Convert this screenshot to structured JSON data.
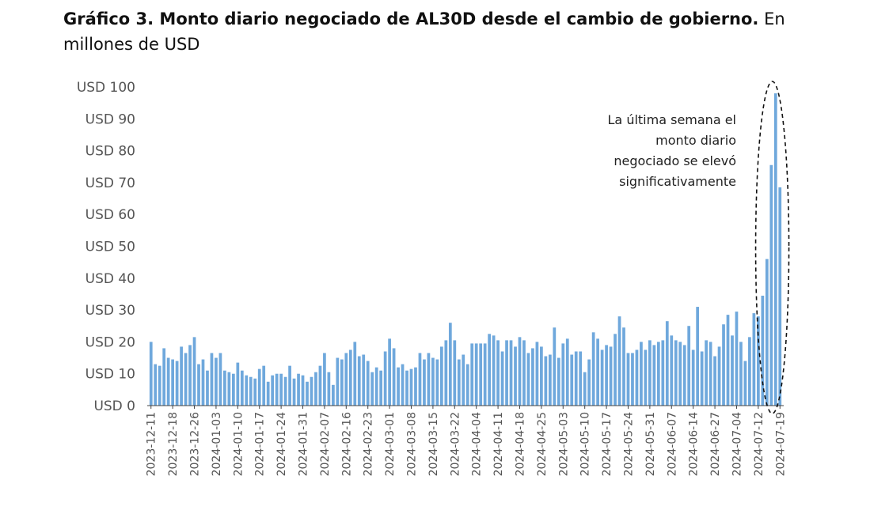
{
  "title": {
    "bold": "Gráfico 3. Monto diario negociado de AL30D desde el cambio de gobierno.",
    "rest": " En millones de USD"
  },
  "annotation": {
    "lines": [
      "La última semana el",
      "monto diario",
      "negociado se elevó",
      "significativamente"
    ]
  },
  "colors": {
    "bar": "#6fa8dc",
    "axis": "#444444"
  },
  "chart_data": {
    "type": "bar",
    "ylim": [
      0,
      100
    ],
    "yticks": [
      {
        "value": 0,
        "label": "USD 0"
      },
      {
        "value": 10,
        "label": "USD 10"
      },
      {
        "value": 20,
        "label": "USD 20"
      },
      {
        "value": 30,
        "label": "USD 30"
      },
      {
        "value": 40,
        "label": "USD 40"
      },
      {
        "value": 50,
        "label": "USD 50"
      },
      {
        "value": 60,
        "label": "USD 60"
      },
      {
        "value": 70,
        "label": "USD 70"
      },
      {
        "value": 80,
        "label": "USD 80"
      },
      {
        "value": 90,
        "label": "USD 90"
      },
      {
        "value": 100,
        "label": "USD 100"
      }
    ],
    "xtick_labels": [
      {
        "index": 0,
        "label": "2023-12-11"
      },
      {
        "index": 5,
        "label": "2023-12-18"
      },
      {
        "index": 10,
        "label": "2023-12-26"
      },
      {
        "index": 15,
        "label": "2024-01-03"
      },
      {
        "index": 20,
        "label": "2024-01-10"
      },
      {
        "index": 25,
        "label": "2024-01-17"
      },
      {
        "index": 30,
        "label": "2024-01-24"
      },
      {
        "index": 35,
        "label": "2024-01-31"
      },
      {
        "index": 40,
        "label": "2024-02-07"
      },
      {
        "index": 45,
        "label": "2024-02-16"
      },
      {
        "index": 50,
        "label": "2024-02-23"
      },
      {
        "index": 55,
        "label": "2024-03-01"
      },
      {
        "index": 60,
        "label": "2024-03-08"
      },
      {
        "index": 65,
        "label": "2024-03-15"
      },
      {
        "index": 70,
        "label": "2024-03-22"
      },
      {
        "index": 75,
        "label": "2024-04-04"
      },
      {
        "index": 80,
        "label": "2024-04-11"
      },
      {
        "index": 85,
        "label": "2024-04-18"
      },
      {
        "index": 90,
        "label": "2024-04-25"
      },
      {
        "index": 95,
        "label": "2024-05-03"
      },
      {
        "index": 100,
        "label": "2024-05-10"
      },
      {
        "index": 105,
        "label": "2024-05-17"
      },
      {
        "index": 110,
        "label": "2024-05-24"
      },
      {
        "index": 115,
        "label": "2024-05-31"
      },
      {
        "index": 120,
        "label": "2024-06-07"
      },
      {
        "index": 125,
        "label": "2024-06-14"
      },
      {
        "index": 130,
        "label": "2024-06-27"
      },
      {
        "index": 135,
        "label": "2024-07-04"
      },
      {
        "index": 140,
        "label": "2024-07-12"
      },
      {
        "index": 145,
        "label": "2024-07-19"
      }
    ],
    "values": [
      20,
      13,
      12.5,
      18,
      15,
      14.5,
      14,
      18.5,
      16.5,
      19,
      21.5,
      13,
      14.5,
      11,
      16.5,
      15,
      16.5,
      11,
      10.5,
      10,
      13.5,
      11,
      9.5,
      9,
      8.5,
      11.5,
      12.5,
      7.5,
      9.5,
      10,
      10,
      9,
      12.5,
      8.5,
      10,
      9.5,
      7.5,
      9,
      10.5,
      12.5,
      16.5,
      10.5,
      6.5,
      15,
      14.5,
      16.5,
      17.5,
      20,
      15.5,
      16,
      14,
      10.5,
      12,
      11,
      17,
      21,
      18,
      12,
      13,
      11,
      11.5,
      12,
      16.5,
      14.5,
      16.5,
      15,
      14.5,
      18.5,
      20.5,
      26,
      20.5,
      14.5,
      16,
      13,
      19.5,
      19.5,
      19.5,
      19.5,
      22.5,
      22,
      20.5,
      17,
      20.5,
      20.5,
      18.5,
      21.5,
      20.5,
      16.5,
      18,
      20,
      18.5,
      15.5,
      16,
      24.5,
      15,
      19.5,
      21,
      16,
      17,
      17,
      10.5,
      14.5,
      23,
      21,
      17.5,
      19,
      18.5,
      22.5,
      28,
      24.5,
      16.5,
      16.5,
      17.5,
      20,
      17.5,
      20.5,
      19,
      20,
      20.5,
      26.5,
      22,
      20.5,
      20,
      19,
      25,
      17.5,
      31,
      17,
      20.5,
      20,
      15.5,
      18.5,
      25.5,
      28.5,
      22,
      29.5,
      20,
      14,
      21.5,
      29,
      28,
      34.5,
      46,
      75.5,
      98,
      68.5
    ]
  }
}
